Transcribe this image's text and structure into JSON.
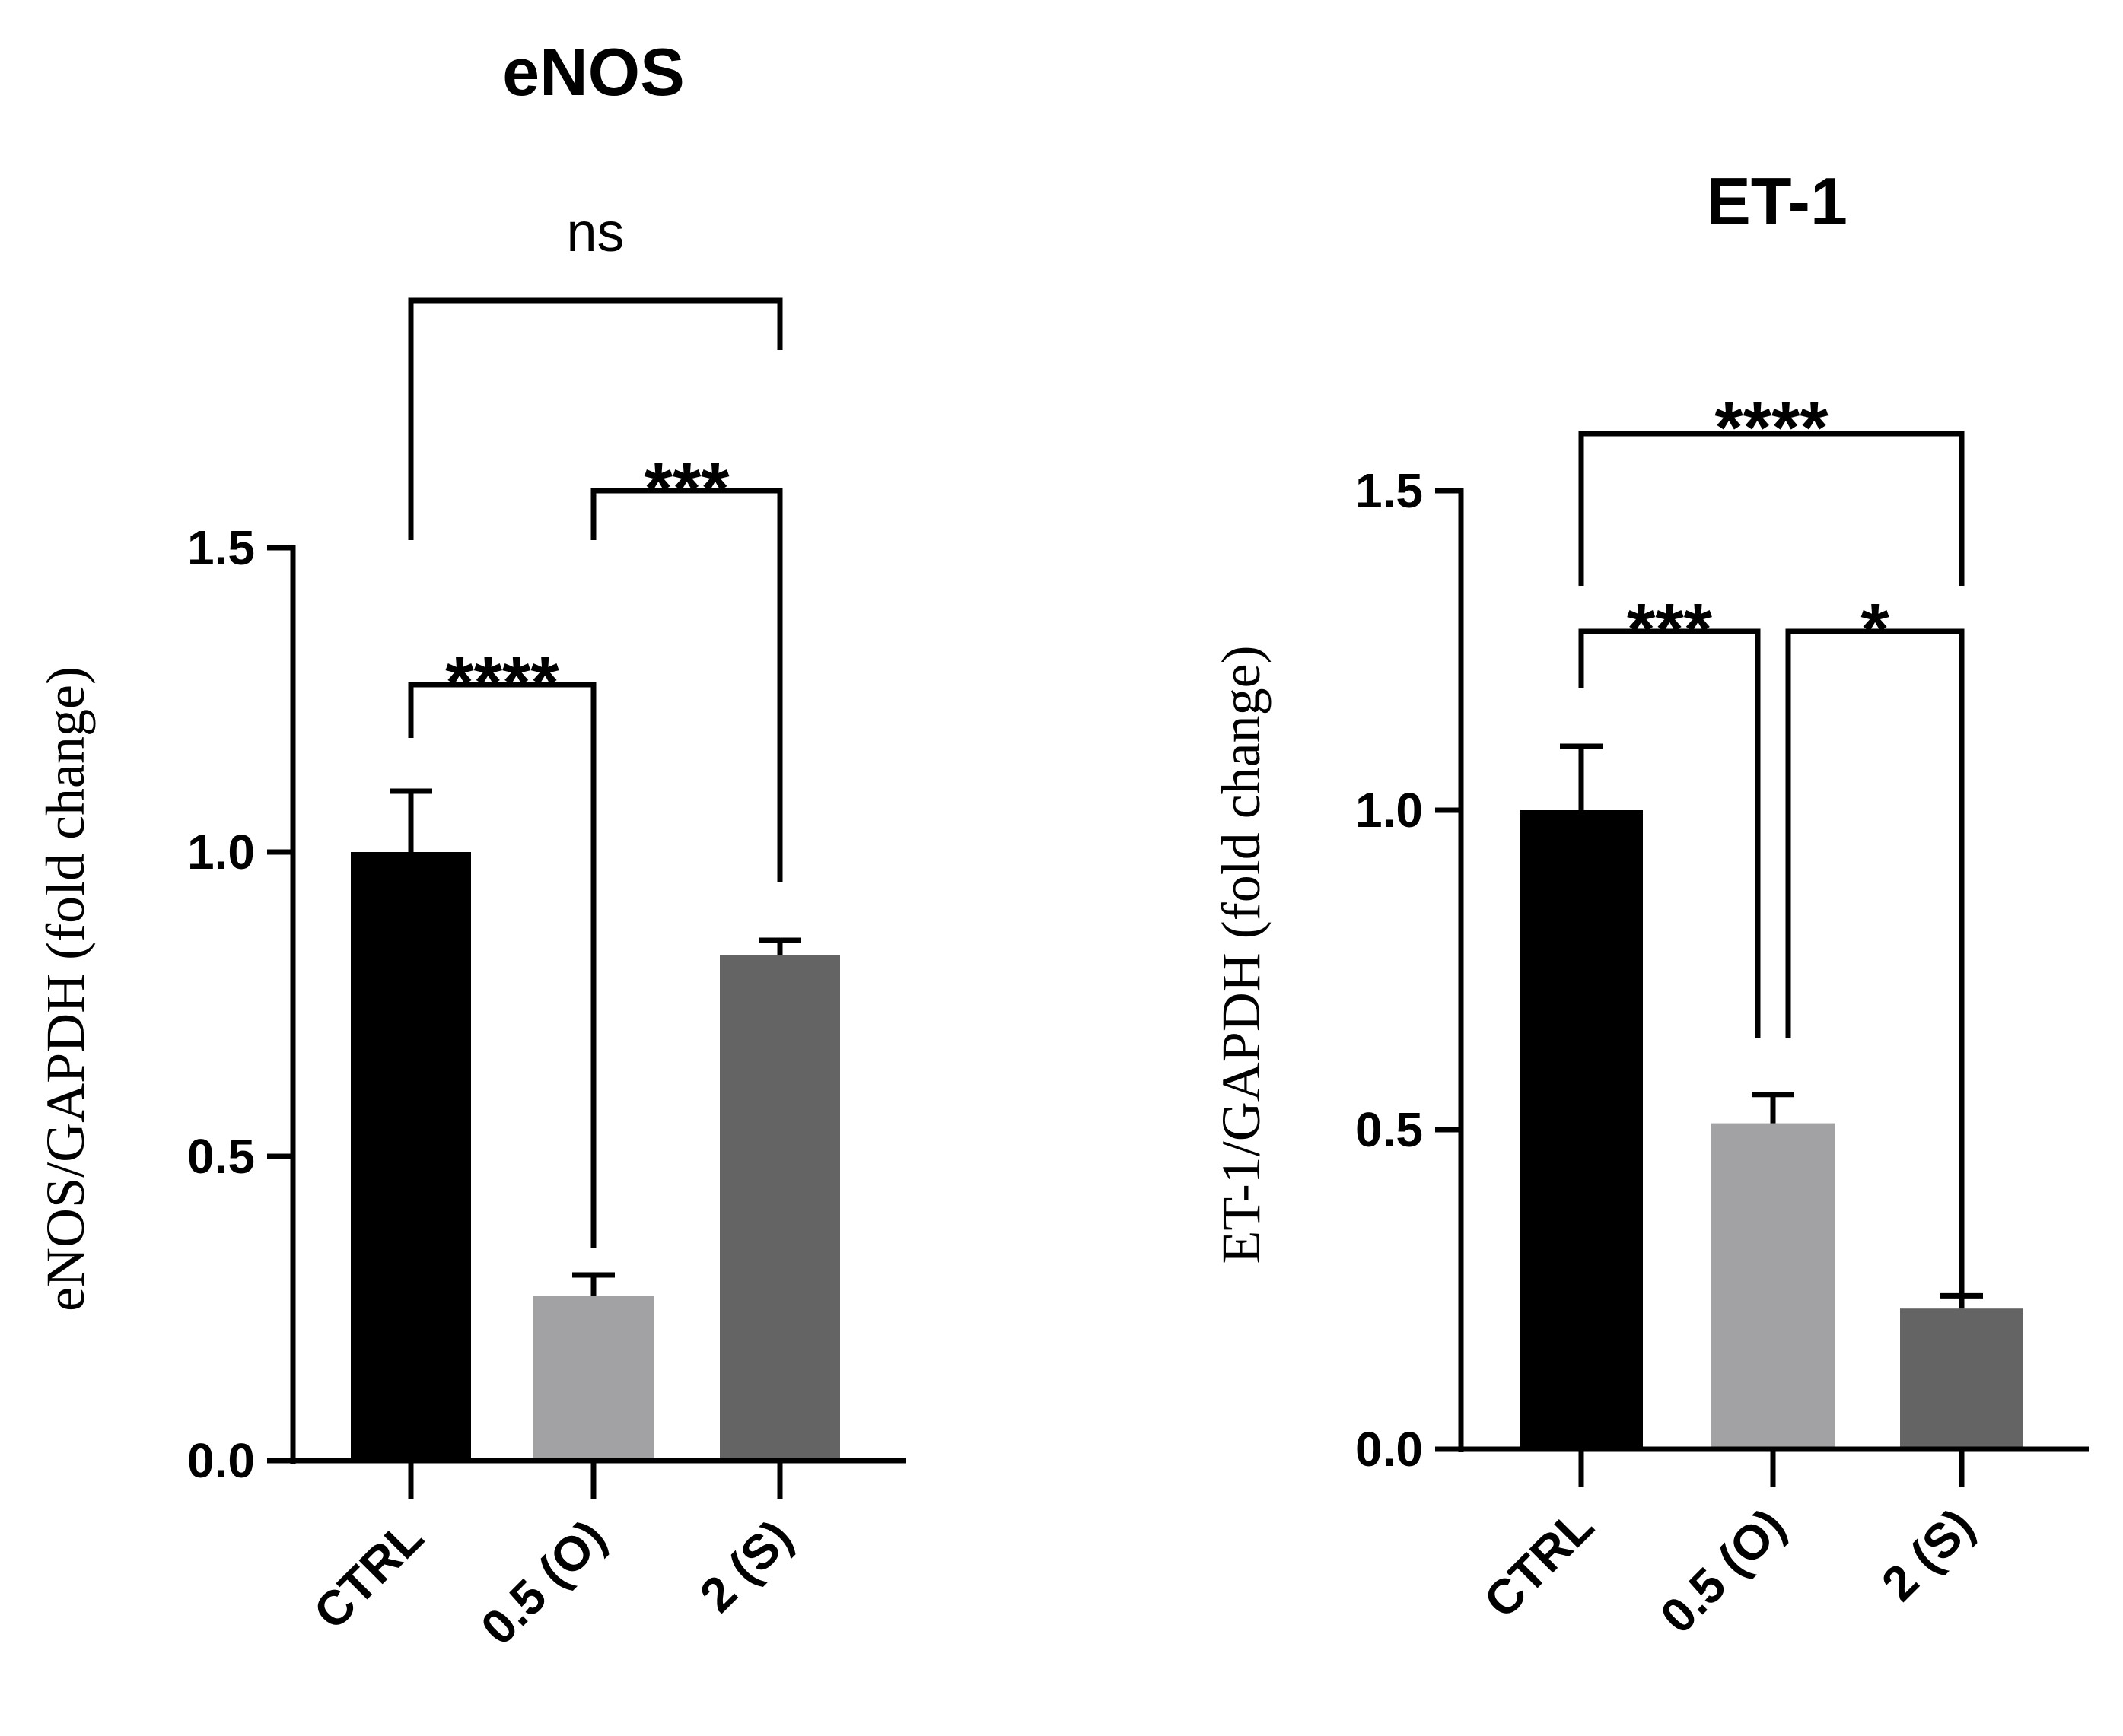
{
  "chart_data": [
    {
      "type": "bar",
      "title": "eNOS",
      "xlabel": "",
      "ylabel": "eNOS/GAPDH (fold change)",
      "categories": [
        "CTRL",
        "0.5 (O)",
        "2 (S)"
      ],
      "values": [
        1.0,
        0.27,
        0.83
      ],
      "errors": [
        0.1,
        0.035,
        0.025
      ],
      "colors": [
        "#000000",
        "#a2a2a4",
        "#646464"
      ],
      "ylim": [
        0,
        1.5
      ],
      "yticks": [
        0.0,
        0.5,
        1.0,
        1.5
      ],
      "ytick_labels": [
        "0.0",
        "0.5",
        "1.0",
        "1.5"
      ],
      "grid": false,
      "significance": [
        {
          "from": 0,
          "to": 1,
          "label": "****"
        },
        {
          "from": 1,
          "to": 2,
          "label": "***"
        },
        {
          "from": 0,
          "to": 2,
          "label": "ns"
        }
      ]
    },
    {
      "type": "bar",
      "title": "ET-1",
      "xlabel": "",
      "ylabel": "ET-1/GAPDH (fold change)",
      "categories": [
        "CTRL",
        "0.5 (O)",
        "2 (S)"
      ],
      "values": [
        1.0,
        0.51,
        0.22
      ],
      "errors": [
        0.1,
        0.045,
        0.02
      ],
      "colors": [
        "#000000",
        "#a2a2a4",
        "#646464"
      ],
      "ylim": [
        0,
        1.5
      ],
      "yticks": [
        0.0,
        0.5,
        1.0,
        1.5
      ],
      "ytick_labels": [
        "0.0",
        "0.5",
        "1.0",
        "1.5"
      ],
      "grid": false,
      "significance": [
        {
          "from": 0,
          "to": 1,
          "label": "***"
        },
        {
          "from": 1,
          "to": 2,
          "label": "*"
        },
        {
          "from": 0,
          "to": 2,
          "label": "****"
        }
      ]
    }
  ]
}
